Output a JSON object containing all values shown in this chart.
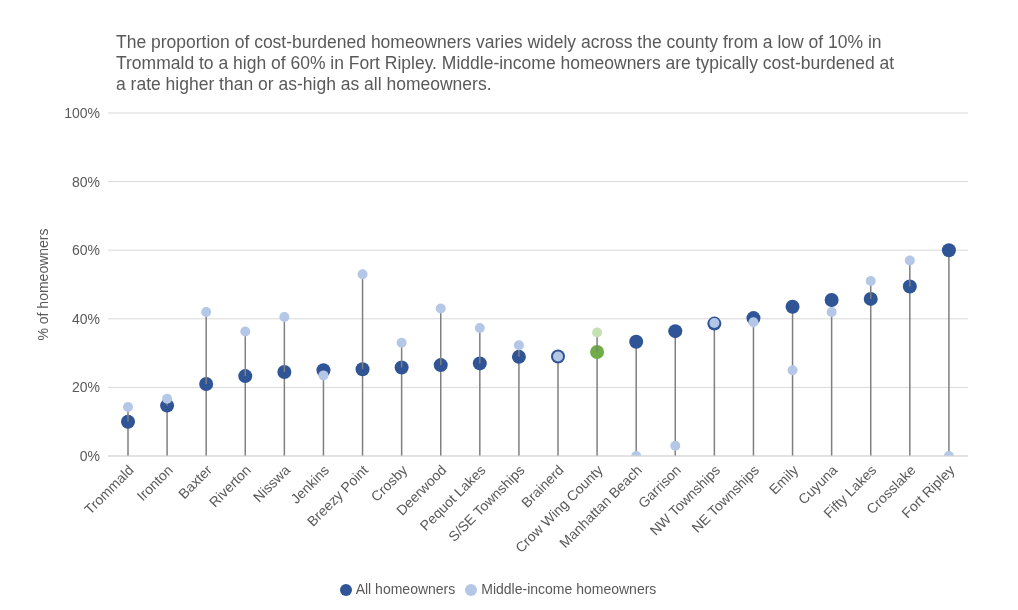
{
  "chart_data": {
    "type": "lollipop",
    "title": "The proportion of cost-burdened homeowners varies widely across the county from a low of 10% in Trommald to a high of 60% in Fort Ripley. Middle-income homeowners are typically cost-burdened at a rate higher than or as-high as all homeowners.",
    "ylabel": "% of homeowners",
    "categories": [
      "Trommald",
      "Ironton",
      "Baxter",
      "Riverton",
      "Nisswa",
      "Jenkins",
      "Breezy Point",
      "Crosby",
      "Deerwood",
      "Pequot Lakes",
      "S/SE Townships",
      "Brainerd",
      "Crow Wing County",
      "Manhattan Beach",
      "Garrison",
      "NW Townships",
      "NE Townships",
      "Emily",
      "Cuyuna",
      "Fifty Lakes",
      "Crosslake",
      "Fort Ripley"
    ],
    "series": [
      {
        "name": "All homeowners",
        "color": "#2f5597",
        "colors": [
          "#2f5597",
          "#2f5597",
          "#2f5597",
          "#2f5597",
          "#2f5597",
          "#2f5597",
          "#2f5597",
          "#2f5597",
          "#2f5597",
          "#2f5597",
          "#2f5597",
          "#2f5597",
          "#70ad47",
          "#2f5597",
          "#2f5597",
          "#2f5597",
          "#2f5597",
          "#2f5597",
          "#2f5597",
          "#2f5597",
          "#2f5597",
          "#2f5597"
        ],
        "values": [
          10,
          14.7,
          21,
          23.3,
          24.5,
          25,
          25.3,
          25.8,
          26.5,
          27,
          28.9,
          29,
          30.3,
          33.3,
          36.4,
          38.6,
          40.2,
          43.5,
          45.5,
          45.8,
          49.4,
          60
        ]
      },
      {
        "name": "Middle-income homeowners",
        "color": "#b4c7e7",
        "colors": [
          "#b4c7e7",
          "#b4c7e7",
          "#b4c7e7",
          "#b4c7e7",
          "#b4c7e7",
          "#b4c7e7",
          "#b4c7e7",
          "#b4c7e7",
          "#b4c7e7",
          "#b4c7e7",
          "#b4c7e7",
          "#b4c7e7",
          "#c5e0b4",
          "#b4c7e7",
          "#b4c7e7",
          "#b4c7e7",
          "#b4c7e7",
          "#b4c7e7",
          "#b4c7e7",
          "#b4c7e7",
          "#b4c7e7",
          "#b4c7e7"
        ],
        "values": [
          14.3,
          16.7,
          42,
          36.3,
          40.5,
          23.5,
          53,
          33,
          43,
          37.3,
          32.3,
          29,
          36,
          0,
          3,
          38.8,
          39,
          25,
          42,
          51,
          57,
          0
        ]
      }
    ],
    "ylim": [
      0,
      100
    ],
    "yticks": [
      {
        "value": 0,
        "label": "0%"
      },
      {
        "value": 20,
        "label": "20%"
      },
      {
        "value": 40,
        "label": "40%"
      },
      {
        "value": 60,
        "label": "60%"
      },
      {
        "value": 80,
        "label": "80%"
      },
      {
        "value": 100,
        "label": "100%"
      }
    ],
    "grid": "y",
    "legend": "bottom",
    "marker": "circle"
  }
}
